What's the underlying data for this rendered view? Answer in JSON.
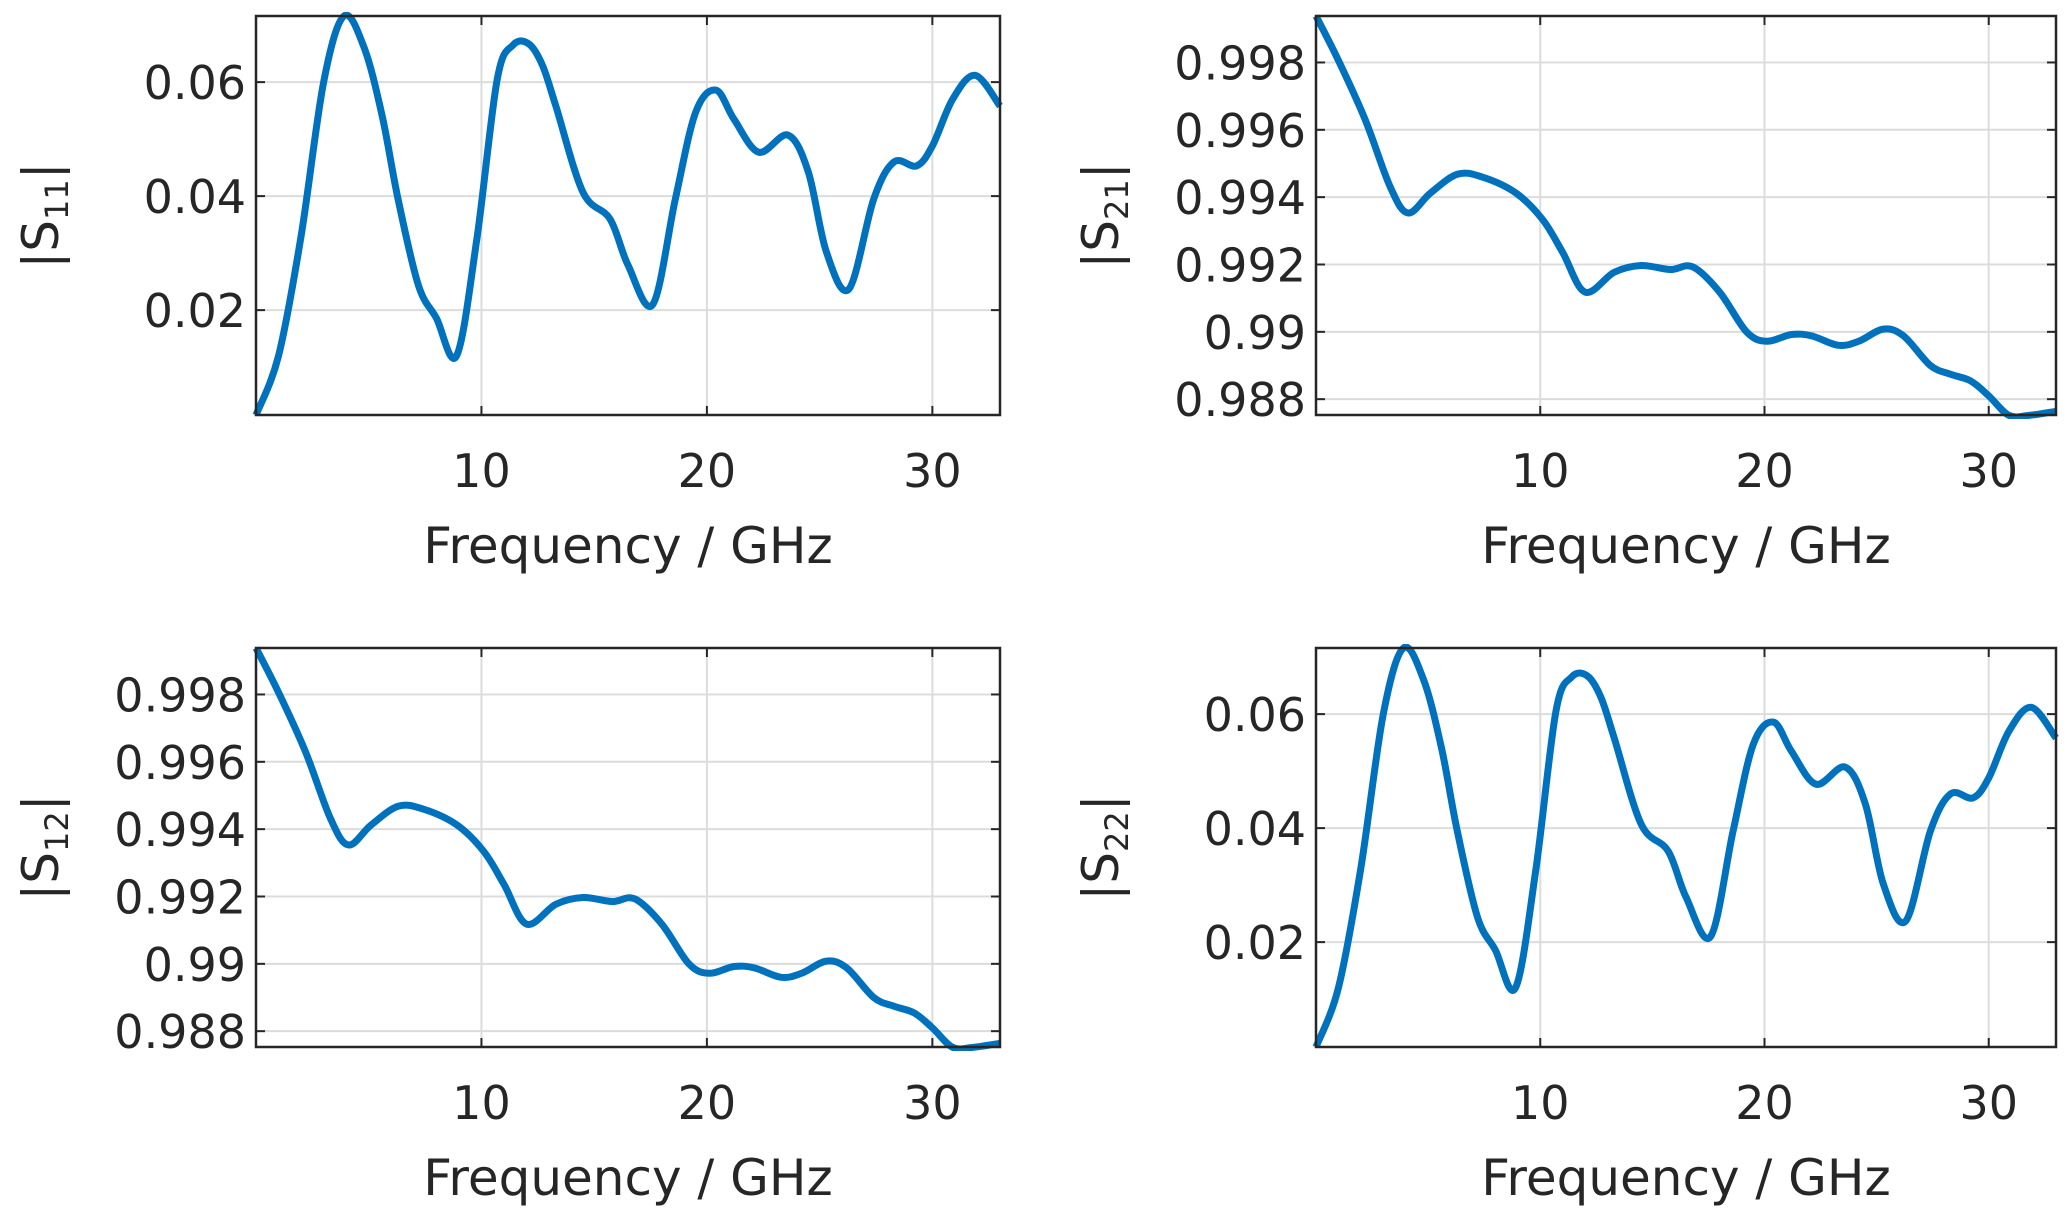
{
  "chart_data": [
    {
      "type": "line",
      "id": "s11",
      "ylabel_main": "|S",
      "ylabel_sub": "11",
      "ylabel_end": "|",
      "xlabel": "Frequency / GHz",
      "xlim": [
        0,
        33
      ],
      "ylim": [
        0.0016,
        0.0716
      ],
      "xticks": [
        10,
        20,
        30
      ],
      "xtick_labels": [
        "10",
        "20",
        "30"
      ],
      "yticks": [
        0.02,
        0.04,
        0.06
      ],
      "ytick_labels": [
        "0.02",
        "0.04",
        "0.06"
      ],
      "grid": true,
      "color": "#0072BD",
      "x": [
        0,
        1.0,
        2.0,
        3.0,
        3.9,
        4.8,
        5.6,
        6.3,
        7.2,
        8.0,
        8.9,
        9.8,
        10.7,
        11.4,
        12.1,
        12.7,
        13.3,
        14.5,
        15.7,
        16.5,
        17.6,
        18.6,
        19.5,
        20.4,
        21.2,
        22.3,
        23.6,
        24.5,
        25.3,
        26.3,
        27.4,
        28.3,
        29.3,
        30.0,
        30.9,
        31.9,
        33.0
      ],
      "y": [
        0.0016,
        0.012,
        0.033,
        0.06,
        0.0716,
        0.066,
        0.054,
        0.0395,
        0.0244,
        0.0186,
        0.012,
        0.0326,
        0.0605,
        0.0665,
        0.0667,
        0.063,
        0.0558,
        0.0407,
        0.036,
        0.0279,
        0.021,
        0.0395,
        0.0547,
        0.0586,
        0.0535,
        0.0477,
        0.0507,
        0.0442,
        0.0302,
        0.0237,
        0.0395,
        0.046,
        0.0453,
        0.0488,
        0.057,
        0.0612,
        0.0558
      ]
    },
    {
      "type": "line",
      "id": "s21",
      "ylabel_main": "|S",
      "ylabel_sub": "21",
      "ylabel_end": "|",
      "xlabel": "Frequency / GHz",
      "xlim": [
        0,
        33
      ],
      "ylim": [
        0.98753,
        0.99938
      ],
      "xticks": [
        10,
        20,
        30
      ],
      "xtick_labels": [
        "10",
        "20",
        "30"
      ],
      "yticks": [
        0.988,
        0.99,
        0.992,
        0.994,
        0.996,
        0.998
      ],
      "ytick_labels": [
        "0.988",
        "0.99",
        "0.992",
        "0.994",
        "0.996",
        "0.998"
      ],
      "grid": true,
      "color": "#0072BD",
      "x": [
        0,
        1.0,
        2.2,
        3.3,
        4.1,
        5.1,
        6.3,
        7.4,
        8.9,
        10.1,
        11.0,
        12.0,
        13.3,
        14.5,
        15.8,
        16.8,
        18.0,
        19.2,
        20.1,
        21.2,
        22.1,
        23.3,
        24.2,
        25.3,
        26.2,
        27.4,
        28.3,
        29.2,
        30.0,
        30.9,
        31.8,
        33.0
      ],
      "y": [
        0.99938,
        0.99806,
        0.99629,
        0.99432,
        0.99353,
        0.99412,
        0.99468,
        0.9946,
        0.99413,
        0.99334,
        0.99236,
        0.99118,
        0.99177,
        0.99197,
        0.99185,
        0.99193,
        0.99118,
        0.99,
        0.98972,
        0.98992,
        0.98988,
        0.9896,
        0.98972,
        0.99008,
        0.98988,
        0.989,
        0.98874,
        0.98854,
        0.9881,
        0.98752,
        0.98752,
        0.98764
      ]
    },
    {
      "type": "line",
      "id": "s12",
      "ylabel_main": "|S",
      "ylabel_sub": "12",
      "ylabel_end": "|",
      "xlabel": "Frequency / GHz",
      "xlim": [
        0,
        33
      ],
      "ylim": [
        0.98753,
        0.99938
      ],
      "xticks": [
        10,
        20,
        30
      ],
      "xtick_labels": [
        "10",
        "20",
        "30"
      ],
      "yticks": [
        0.988,
        0.99,
        0.992,
        0.994,
        0.996,
        0.998
      ],
      "ytick_labels": [
        "0.988",
        "0.99",
        "0.992",
        "0.994",
        "0.996",
        "0.998"
      ],
      "grid": true,
      "color": "#0072BD",
      "x": [
        0,
        1.0,
        2.2,
        3.3,
        4.1,
        5.1,
        6.3,
        7.4,
        8.9,
        10.1,
        11.0,
        12.0,
        13.3,
        14.5,
        15.8,
        16.8,
        18.0,
        19.2,
        20.1,
        21.2,
        22.1,
        23.3,
        24.2,
        25.3,
        26.2,
        27.4,
        28.3,
        29.2,
        30.0,
        30.9,
        31.8,
        33.0
      ],
      "y": [
        0.99938,
        0.99806,
        0.99629,
        0.99432,
        0.99353,
        0.99412,
        0.99468,
        0.9946,
        0.99413,
        0.99334,
        0.99236,
        0.99118,
        0.99177,
        0.99197,
        0.99185,
        0.99193,
        0.99118,
        0.99,
        0.98972,
        0.98992,
        0.98988,
        0.9896,
        0.98972,
        0.99008,
        0.98988,
        0.989,
        0.98874,
        0.98854,
        0.9881,
        0.98752,
        0.98752,
        0.98764
      ]
    },
    {
      "type": "line",
      "id": "s22",
      "ylabel_main": "|S",
      "ylabel_sub": "22",
      "ylabel_end": "|",
      "xlabel": "Frequency / GHz",
      "xlim": [
        0,
        33
      ],
      "ylim": [
        0.0016,
        0.0716
      ],
      "xticks": [
        10,
        20,
        30
      ],
      "xtick_labels": [
        "10",
        "20",
        "30"
      ],
      "yticks": [
        0.02,
        0.04,
        0.06
      ],
      "ytick_labels": [
        "0.02",
        "0.04",
        "0.06"
      ],
      "grid": true,
      "color": "#0072BD",
      "x": [
        0,
        1.0,
        2.0,
        3.0,
        3.9,
        4.8,
        5.6,
        6.3,
        7.2,
        8.0,
        8.9,
        9.8,
        10.7,
        11.4,
        12.1,
        12.7,
        13.3,
        14.5,
        15.7,
        16.5,
        17.6,
        18.6,
        19.5,
        20.4,
        21.2,
        22.3,
        23.6,
        24.5,
        25.3,
        26.3,
        27.4,
        28.3,
        29.3,
        30.0,
        30.9,
        31.9,
        33.0
      ],
      "y": [
        0.0016,
        0.012,
        0.033,
        0.06,
        0.0716,
        0.066,
        0.054,
        0.0395,
        0.0244,
        0.0186,
        0.012,
        0.0326,
        0.0605,
        0.0665,
        0.0667,
        0.063,
        0.0558,
        0.0407,
        0.036,
        0.0279,
        0.021,
        0.0395,
        0.0547,
        0.0586,
        0.0535,
        0.0477,
        0.0507,
        0.0442,
        0.0302,
        0.0237,
        0.0395,
        0.046,
        0.0453,
        0.0488,
        0.057,
        0.0612,
        0.0558
      ]
    }
  ]
}
